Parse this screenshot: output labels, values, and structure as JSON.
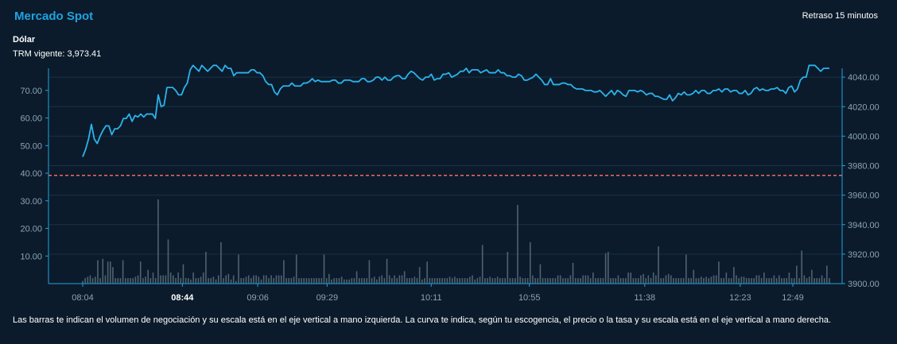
{
  "header": {
    "title": "Mercado Spot",
    "delay": "Retraso 15 minutos",
    "currency": "Dólar",
    "trm": "TRM vigente: 3,973.41"
  },
  "colors": {
    "background": "#0b1b2b",
    "title": "#1fa3e0",
    "price_line": "#2bb3ec",
    "volume_bar": "#4f6270",
    "trm_line": "#f06a6a",
    "axis": "#1fa3e0",
    "grid": "#1b3246"
  },
  "note": "Las barras te indican el volumen de negociación y su escala está en el eje vertical a mano izquierda. La curva te indica, según tu escogencia, el precio o la tasa y su escala está en el eje vertical a mano derecha.",
  "chart_data": {
    "type": "line+bar",
    "x_ticks": [
      "08:04",
      "08:44",
      "09:06",
      "09:29",
      "10:11",
      "10:55",
      "11:38",
      "12:23",
      "12:49"
    ],
    "x_ticks_bold": [
      "08:44"
    ],
    "left_axis": {
      "ticks": [
        "10.00",
        "20.00",
        "30.00",
        "40.00",
        "50.00",
        "60.00",
        "70.00"
      ],
      "ylim": [
        0,
        78
      ]
    },
    "right_axis": {
      "ticks": [
        "3900.00",
        "3920.00",
        "3940.00",
        "3960.00",
        "3980.00",
        "4000.00",
        "4020.00",
        "4040.00"
      ],
      "ylim": [
        3900,
        4046
      ]
    },
    "trm_reference": 3973.41,
    "price_series": [
      3986,
      3991,
      3998,
      4008,
      3998,
      3995,
      4000,
      4004,
      4007,
      4007,
      4001,
      4005,
      4005,
      4007,
      4012,
      4012,
      4015,
      4010,
      4014,
      4013,
      4015,
      4013,
      4015,
      4015,
      4015,
      4012,
      4028,
      4020,
      4021,
      4033,
      4033,
      4033,
      4031,
      4028,
      4028,
      4033,
      4036,
      4045,
      4048,
      4046,
      4044,
      4048,
      4046,
      4044,
      4046,
      4048,
      4048,
      4046,
      4044,
      4048,
      4046,
      4046,
      4041,
      4043,
      4043,
      4043,
      4043,
      4043,
      4045,
      4045,
      4043,
      4043,
      4041,
      4037,
      4035,
      4035,
      4030,
      4028,
      4032,
      4034,
      4034,
      4034,
      4036,
      4034,
      4034,
      4034,
      4036,
      4036,
      4037,
      4039,
      4037,
      4038,
      4037,
      4037,
      4037,
      4037,
      4038,
      4038,
      4036,
      4036,
      4038,
      4038,
      4038,
      4037,
      4037,
      4037,
      4039,
      4039,
      4037,
      4037,
      4038,
      4040,
      4040,
      4038,
      4040,
      4038,
      4038,
      4040,
      4041,
      4041,
      4039,
      4039,
      4042,
      4044,
      4043,
      4041,
      4039,
      4038,
      4040,
      4040,
      4042,
      4038,
      4039,
      4039,
      4042,
      4042,
      4043,
      4040,
      4041,
      4042,
      4044,
      4044,
      4046,
      4043,
      4045,
      4045,
      4045,
      4043,
      4044,
      4045,
      4043,
      4043,
      4043,
      4045,
      4043,
      4043,
      4041,
      4041,
      4040,
      4040,
      4042,
      4041,
      4038,
      4038,
      4039,
      4040,
      4042,
      4040,
      4038,
      4035,
      4035,
      4039,
      4035,
      4035,
      4035,
      4036,
      4036,
      4035,
      4035,
      4033,
      4032,
      4032,
      4032,
      4031,
      4031,
      4031,
      4030,
      4030,
      4031,
      4029,
      4027,
      4029,
      4031,
      4028,
      4031,
      4030,
      4028,
      4027,
      4031,
      4031,
      4031,
      4030,
      4031,
      4030,
      4028,
      4029,
      4029,
      4027,
      4027,
      4026,
      4025,
      4025,
      4028,
      4024,
      4026,
      4029,
      4028,
      4030,
      4028,
      4028,
      4029,
      4031,
      4029,
      4031,
      4031,
      4029,
      4029,
      4031,
      4031,
      4032,
      4030,
      4032,
      4032,
      4030,
      4031,
      4031,
      4029,
      4029,
      4031,
      4028,
      4029,
      4032,
      4033,
      4031,
      4032,
      4031,
      4031,
      4032,
      4032,
      4033,
      4031,
      4031,
      4029,
      4033,
      4034,
      4030,
      4032,
      4038,
      4040,
      4040,
      4048,
      4048,
      4048,
      4046,
      4044,
      4046,
      4046,
      4046
    ],
    "volume_series": [
      1,
      2,
      2.5,
      3,
      2,
      2.5,
      8.5,
      2,
      9,
      3,
      8,
      8,
      6,
      2,
      2,
      2,
      8.5,
      2,
      2,
      2,
      2,
      2.5,
      3,
      8,
      2,
      2.5,
      5,
      2,
      4,
      2,
      30.5,
      3,
      3,
      3,
      16,
      4,
      3,
      2,
      4,
      2,
      7,
      2,
      2,
      1.5,
      4,
      2,
      2,
      2.5,
      4,
      11.5,
      2,
      2,
      2.5,
      1.5,
      3,
      15,
      2,
      3,
      3.5,
      1.5,
      3,
      1,
      10.5,
      2,
      2,
      2.5,
      3,
      2,
      3,
      3,
      2.5,
      1.5,
      3,
      3,
      2,
      3,
      2,
      3,
      3,
      3,
      8.5,
      2,
      2,
      2,
      2.5,
      10.5,
      2,
      2,
      2,
      2,
      2,
      2,
      2,
      2,
      2,
      2,
      10.5,
      2,
      3.5,
      1.5,
      2,
      2,
      2,
      2.5,
      1.5,
      1.5,
      1.5,
      2,
      2,
      4.5,
      2,
      2,
      2,
      2,
      8.5,
      2,
      2.5,
      1.5,
      2.5,
      3,
      2,
      9,
      3,
      2,
      3,
      2,
      3,
      3,
      4.5,
      2,
      2,
      2,
      2.5,
      2,
      6,
      1.5,
      2,
      8,
      2,
      2,
      2,
      2,
      2,
      2,
      2,
      2,
      2.5,
      2,
      2.5,
      2,
      2,
      2,
      2,
      2,
      2.5,
      3,
      1.5,
      2,
      2.5,
      14,
      2,
      2,
      2.5,
      2,
      2,
      2.5,
      2,
      2,
      2,
      11.5,
      2,
      2,
      2,
      28.5,
      2.5,
      2,
      2,
      2,
      15,
      3,
      2,
      2,
      7,
      2,
      2,
      2,
      2,
      2,
      2,
      3,
      3,
      2,
      2,
      2,
      3,
      7.5,
      2,
      2,
      2,
      3,
      3,
      3,
      2,
      4,
      2,
      2,
      2,
      2,
      11,
      11.5,
      2,
      2,
      2,
      3,
      2,
      2,
      2,
      4,
      4,
      2,
      2,
      2,
      3,
      3.5,
      2,
      3,
      2,
      4,
      3,
      13.5,
      2,
      2,
      3,
      3.5,
      3,
      2,
      2,
      2,
      2,
      2,
      10.5,
      2,
      2,
      5,
      2,
      2,
      2.5,
      2,
      2.5,
      2,
      2.5,
      3,
      3,
      8,
      2,
      2,
      4,
      2,
      2,
      6,
      3,
      2,
      2.5,
      2.5,
      2,
      2,
      2,
      2,
      3,
      3,
      2,
      4,
      2,
      2,
      2,
      3,
      2,
      3,
      2,
      2,
      2,
      4,
      2,
      2,
      6.5,
      2,
      12,
      3,
      2,
      2.5,
      5,
      2,
      2,
      2,
      3,
      2,
      6.5,
      2
    ]
  }
}
